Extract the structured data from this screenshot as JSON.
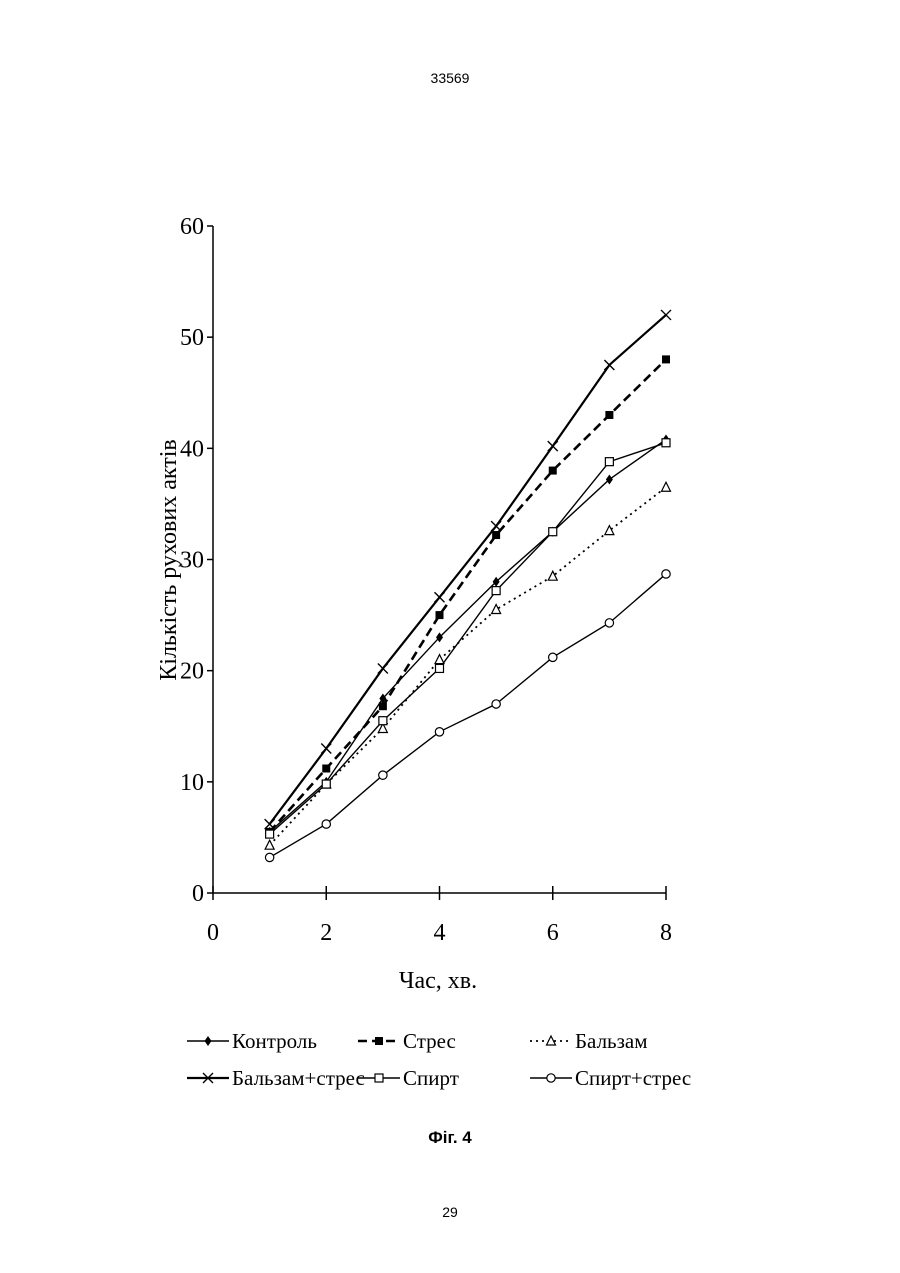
{
  "document": {
    "number": "33569",
    "page": "29",
    "caption": "Фіг. 4"
  },
  "chart_data": {
    "type": "line",
    "xlabel": "Час, хв.",
    "ylabel": "Кількість рухових актів",
    "xlim": [
      0,
      8
    ],
    "ylim": [
      0,
      60
    ],
    "xticks": [
      "0",
      "2",
      "4",
      "6",
      "8"
    ],
    "yticks": [
      "0",
      "10",
      "20",
      "30",
      "40",
      "50",
      "60"
    ],
    "x": [
      1,
      2,
      3,
      4,
      5,
      6,
      7,
      8
    ],
    "legend_position": "bottom",
    "series": [
      {
        "name": "Контроль",
        "marker": "diamond",
        "line": "solid",
        "values": [
          5.5,
          10,
          17.5,
          23,
          28,
          32.5,
          37.2,
          40.8
        ]
      },
      {
        "name": "Стрес",
        "marker": "square-filled",
        "line": "dashed",
        "values": [
          5.5,
          11.2,
          16.8,
          25,
          32.2,
          38,
          43,
          48
        ]
      },
      {
        "name": "Бальзам",
        "marker": "triangle-open",
        "line": "dotted",
        "values": [
          4.3,
          9.8,
          14.8,
          21,
          25.5,
          28.5,
          32.6,
          36.5
        ]
      },
      {
        "name": "Бальзам+стрес",
        "marker": "cross",
        "line": "solid-thick",
        "values": [
          6.2,
          13,
          20.2,
          26.6,
          33,
          40.2,
          47.5,
          52
        ]
      },
      {
        "name": "Спирт",
        "marker": "square-open",
        "line": "solid",
        "values": [
          5.3,
          9.8,
          15.5,
          20.2,
          27.2,
          32.5,
          38.8,
          40.5
        ]
      },
      {
        "name": "Спирт+стрес",
        "marker": "circle-open",
        "line": "solid",
        "values": [
          3.2,
          6.2,
          10.6,
          14.5,
          17,
          21.2,
          24.3,
          28.7
        ]
      }
    ]
  }
}
